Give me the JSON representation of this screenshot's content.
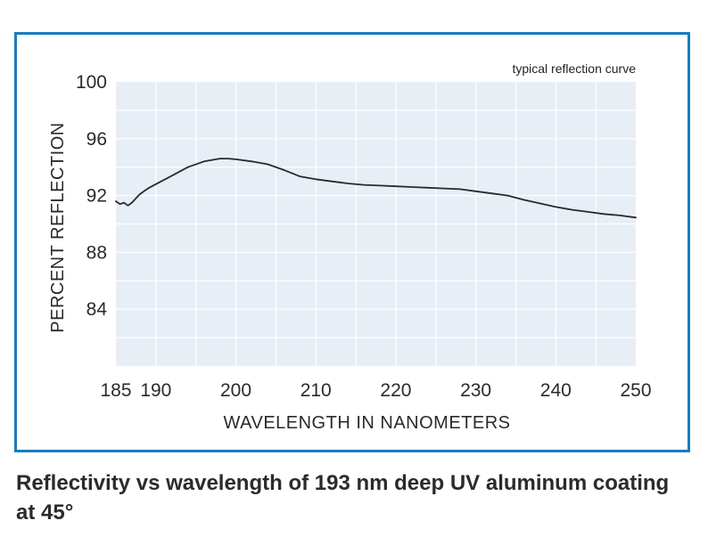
{
  "chart_data": {
    "type": "line",
    "title": "",
    "subtitle": "typical reflection curve",
    "xlabel": "WAVELENGTH IN NANOMETERS",
    "ylabel": "PERCENT REFLECTION",
    "xlim": [
      185,
      250
    ],
    "ylim": [
      80,
      100
    ],
    "xticks": [
      185,
      190,
      200,
      210,
      220,
      230,
      240,
      250
    ],
    "yticks": [
      84,
      88,
      92,
      96,
      100
    ],
    "grid": true,
    "series": [
      {
        "name": "typical reflection curve",
        "color": "#2a2a2a",
        "x": [
          185,
          185.5,
          186,
          186.5,
          187,
          187.5,
          188,
          189,
          190,
          192,
          194,
          196,
          198,
          199,
          200,
          202,
          204,
          206,
          208,
          210,
          212,
          214,
          216,
          218,
          220,
          222,
          224,
          226,
          228,
          230,
          232,
          234,
          236,
          238,
          240,
          242,
          244,
          246,
          248,
          250
        ],
        "y": [
          91.6,
          91.4,
          91.5,
          91.3,
          91.5,
          91.8,
          92.1,
          92.5,
          92.8,
          93.4,
          94.0,
          94.4,
          94.6,
          94.6,
          94.55,
          94.4,
          94.2,
          93.8,
          93.35,
          93.15,
          93.0,
          92.85,
          92.75,
          92.7,
          92.65,
          92.6,
          92.55,
          92.5,
          92.45,
          92.3,
          92.15,
          92.0,
          91.7,
          91.45,
          91.2,
          91.0,
          90.85,
          90.7,
          90.6,
          90.45
        ]
      }
    ]
  },
  "caption": {
    "text": "Reflectivity vs wavelength of 193 nm deep UV aluminum coating at 45°"
  },
  "colors": {
    "frame": "#1a7bbf",
    "plot_bg": "#e8eef6",
    "grid": "#ffffff",
    "line": "#2a2a2a"
  }
}
